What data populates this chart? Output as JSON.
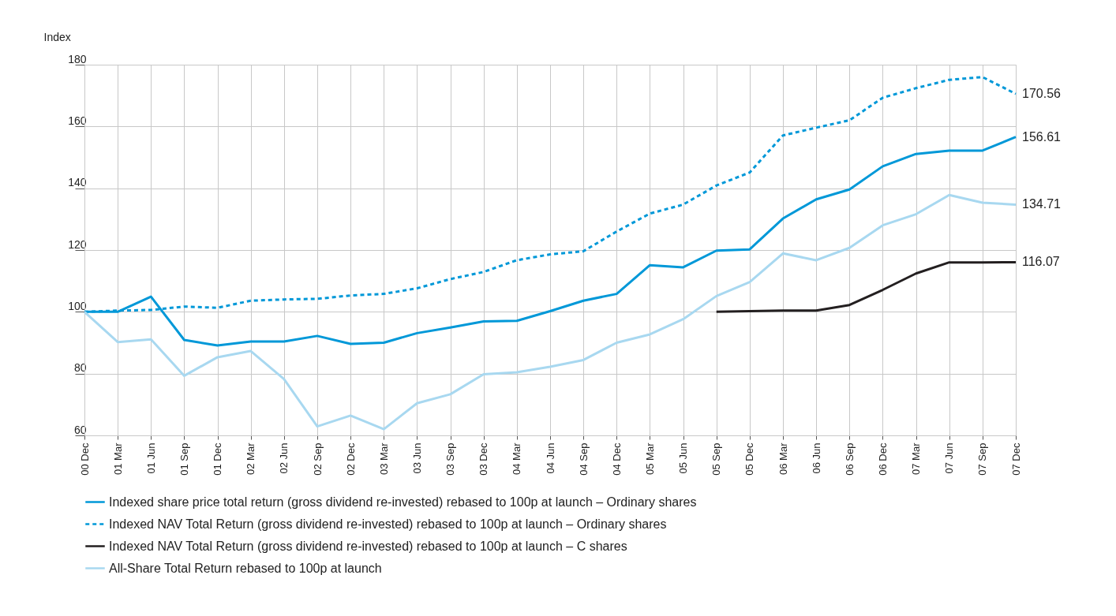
{
  "chart_data": {
    "type": "line",
    "ylabel": "Index",
    "categories": [
      "00 Dec",
      "01 Mar",
      "01 Jun",
      "01 Sep",
      "01 Dec",
      "02 Mar",
      "02 Jun",
      "02 Sep",
      "02 Dec",
      "03 Mar",
      "03 Jun",
      "03 Sep",
      "03 Dec",
      "04 Mar",
      "04 Jun",
      "04 Sep",
      "04 Dec",
      "05 Mar",
      "05 Jun",
      "05 Sep",
      "05 Dec",
      "06 Mar",
      "06 Jun",
      "06 Sep",
      "06 Dec",
      "07 Mar",
      "07 Jun",
      "07 Sep",
      "07 Dec"
    ],
    "ylim": [
      60,
      180
    ],
    "yticks": [
      60,
      80,
      100,
      120,
      140,
      160,
      180
    ],
    "grid": true,
    "legend": "bottom left",
    "marker": "none",
    "series": [
      {
        "name": "Indexed share price total return (gross dividend re-invested) rebased to 100p at launch – Ordinary shares",
        "color": "#0098d8",
        "line_style": "solid",
        "values": [
          100,
          100,
          104.9,
          90.9,
          89.1,
          90.4,
          90.4,
          92.2,
          89.6,
          90,
          93.1,
          94.9,
          96.9,
          97.1,
          100.2,
          103.6,
          105.8,
          115.1,
          114.4,
          119.8,
          120.2,
          130.2,
          136.4,
          139.6,
          147.1,
          151.1,
          152.2,
          152.2,
          156.61
        ],
        "value_labels": [
          null,
          null,
          null,
          null,
          null,
          null,
          null,
          null,
          null,
          null,
          null,
          null,
          null,
          null,
          null,
          null,
          null,
          null,
          null,
          null,
          null,
          null,
          null,
          null,
          null,
          null,
          null,
          null,
          "156.61"
        ]
      },
      {
        "name": "Indexed NAV Total Return (gross dividend re-invested) rebased to 100p at launch – Ordinary shares",
        "color": "#0098d8",
        "line_style": "dashed",
        "values": [
          100,
          100.4,
          100.6,
          101.7,
          101.3,
          103.6,
          104,
          104.2,
          105.3,
          105.8,
          107.6,
          110.6,
          112.9,
          116.7,
          118.6,
          119.6,
          126,
          131.8,
          134.7,
          140.9,
          145.1,
          157.1,
          159.6,
          162,
          169.3,
          172.4,
          175.1,
          176,
          170.56
        ],
        "value_labels": [
          null,
          null,
          null,
          null,
          null,
          null,
          null,
          null,
          null,
          null,
          null,
          null,
          null,
          null,
          null,
          null,
          null,
          null,
          null,
          null,
          null,
          null,
          null,
          null,
          null,
          null,
          null,
          null,
          "170.56"
        ]
      },
      {
        "name": "Indexed NAV Total Return (gross dividend re-invested) rebased to 100p at launch – C shares",
        "color": "#231f20",
        "line_style": "solid",
        "values": [
          null,
          null,
          null,
          null,
          null,
          null,
          null,
          null,
          null,
          null,
          null,
          null,
          null,
          null,
          null,
          null,
          null,
          null,
          null,
          100,
          100.2,
          100.4,
          100.4,
          102.2,
          107.1,
          112.4,
          116,
          116,
          116.07
        ],
        "value_labels": [
          null,
          null,
          null,
          null,
          null,
          null,
          null,
          null,
          null,
          null,
          null,
          null,
          null,
          null,
          null,
          null,
          null,
          null,
          null,
          null,
          null,
          null,
          null,
          null,
          null,
          null,
          null,
          null,
          "116.07"
        ]
      },
      {
        "name": "All-Share Total Return rebased to 100p at launch",
        "color": "#a8d8f0",
        "line_style": "solid",
        "values": [
          100,
          90.2,
          91.1,
          79.3,
          85.3,
          87.3,
          78.2,
          62.9,
          66.4,
          62,
          70.4,
          73.3,
          79.8,
          80.4,
          82.2,
          84.4,
          90,
          92.7,
          97.6,
          105.1,
          109.6,
          118.9,
          116.7,
          120.7,
          128,
          131.6,
          137.8,
          135.3,
          134.71
        ],
        "value_labels": [
          null,
          null,
          null,
          null,
          null,
          null,
          null,
          null,
          null,
          null,
          null,
          null,
          null,
          null,
          null,
          null,
          null,
          null,
          null,
          null,
          null,
          null,
          null,
          null,
          null,
          null,
          null,
          null,
          "134.71"
        ]
      }
    ]
  }
}
